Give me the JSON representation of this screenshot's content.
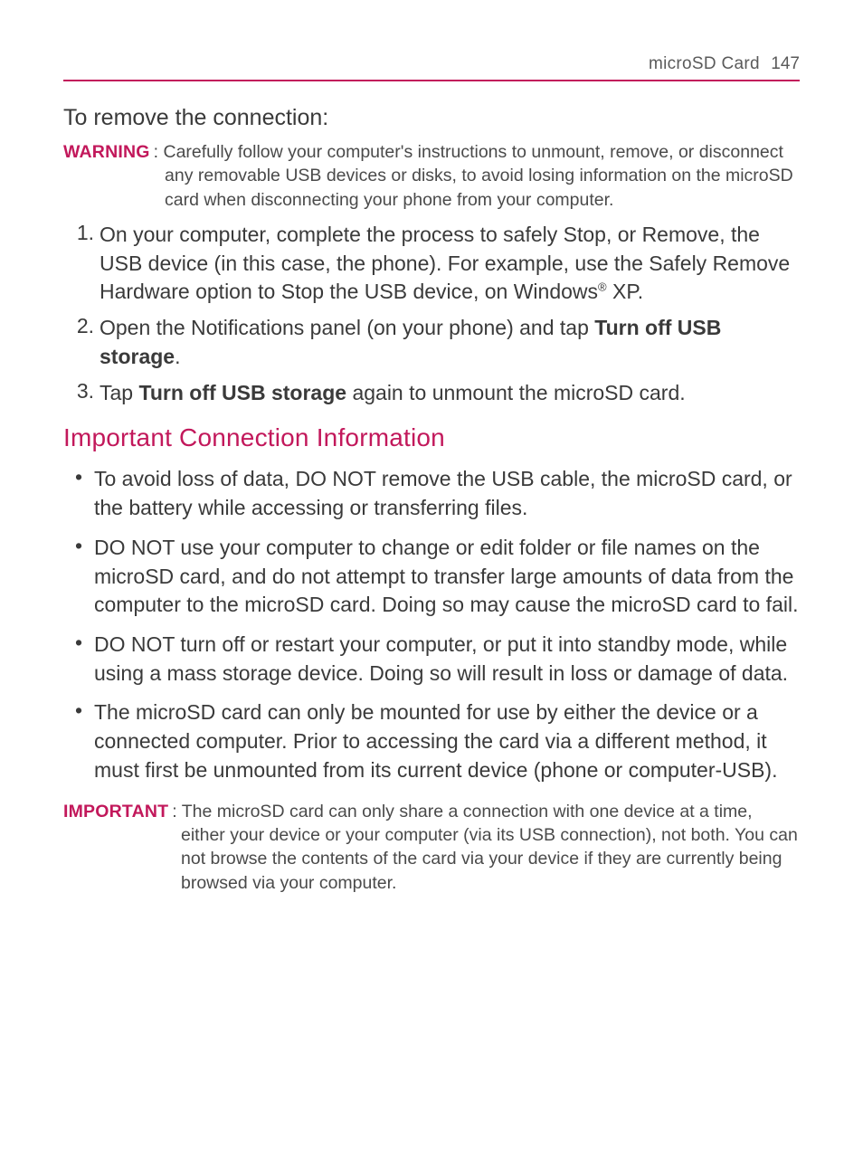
{
  "header": {
    "section": "microSD Card",
    "page": "147"
  },
  "remove": {
    "heading": "To remove the connection:",
    "warning_label": "WARNING",
    "warning_text": ": Carefully follow your computer's instructions to unmount, remove, or disconnect any removable USB devices or disks, to avoid losing information on the microSD card when disconnecting your phone from your computer.",
    "steps": [
      {
        "num": "1.",
        "pre": "On your computer, complete the process to safely Stop, or Remove, the USB device (in this case, the phone). For example, use the Safely Remove Hardware option to Stop the USB device, on Windows",
        "sup": "®",
        "post": " XP."
      },
      {
        "num": "2.",
        "pre": "Open the Notifications panel (on your phone) and tap ",
        "bold": "Turn off USB storage",
        "post": "."
      },
      {
        "num": "3.",
        "pre": "Tap ",
        "bold": "Turn off USB storage",
        "post": " again to unmount the microSD card."
      }
    ]
  },
  "info": {
    "heading": "Important Connection Information",
    "bullets": [
      "To avoid loss of data, DO NOT remove the USB cable, the microSD card, or the battery while accessing or transferring files.",
      "DO NOT use your computer to change or edit folder or file names on the microSD card, and do not attempt to transfer large amounts of data from the computer to the microSD card. Doing so may cause the microSD card to fail.",
      "DO NOT turn off or restart your computer, or put it into standby mode, while using a mass storage device. Doing so will result in loss or damage of data.",
      "The microSD card can only be mounted for use by either the device or a connected computer. Prior to accessing the card via a different method, it must first be unmounted from its current device (phone or computer-USB)."
    ],
    "important_label": "IMPORTANT",
    "important_text": ": The microSD card can only share a connection with one device at a time, either your device or your computer (via its USB connection), not both. You can not browse the contents of the card via your device if they are currently being browsed via your computer."
  },
  "colors": {
    "accent": "#c2185b",
    "text": "#3a3a3a",
    "muted": "#4a4a4a"
  }
}
